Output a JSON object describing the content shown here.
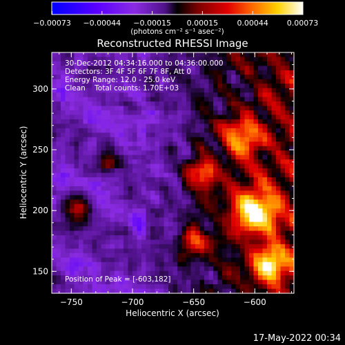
{
  "chart_data": {
    "type": "heatmap",
    "title": "Reconstructed RHESSI Image",
    "annotations": [
      "30-Dec-2012 04:34:16.000 to 04:36:00.000",
      "Detectors: 3F 4F 5F 6F 7F 8F, Att 0",
      "Energy Range: 12.0 - 25.0 keV",
      "Clean    Total counts: 1.70E+03"
    ],
    "peak_label": "Position of Peak = [-603,182]",
    "xlabel": "Heliocentric X (arcsec)",
    "ylabel": "Heliocentric Y (arcsec)",
    "xlim": [
      -766,
      -568
    ],
    "ylim": [
      132,
      330
    ],
    "xticks": [
      -750,
      -700,
      -650,
      -600
    ],
    "yticks": [
      150,
      200,
      250,
      300
    ],
    "colorbar": {
      "ticks": [
        "-0.00073",
        "-0.00044",
        "-0.00015",
        "0.00015",
        "0.00044",
        "0.00073"
      ],
      "units_label": "(photons cm⁻² s⁻¹ asec⁻²)",
      "colormap": [
        "#0000ff",
        "#5a00ff",
        "#8a2be2",
        "#50128a",
        "#000000",
        "#7a0000",
        "#e00000",
        "#ff6a00",
        "#ffd200",
        "#ffffff"
      ]
    },
    "peak": {
      "x": -603,
      "y": 182
    },
    "hot_regions": [
      {
        "x": -600,
        "y": 200,
        "r": 20,
        "level": 1.0
      },
      {
        "x": -588,
        "y": 155,
        "r": 14,
        "level": 0.9
      },
      {
        "x": -610,
        "y": 260,
        "r": 16,
        "level": 0.75
      },
      {
        "x": -642,
        "y": 230,
        "r": 14,
        "level": 0.7
      },
      {
        "x": -650,
        "y": 175,
        "r": 12,
        "level": 0.6
      },
      {
        "x": -745,
        "y": 200,
        "r": 12,
        "level": 0.5
      },
      {
        "x": -720,
        "y": 240,
        "r": 9,
        "level": 0.4
      }
    ]
  },
  "footer": {
    "timestamp": "17-May-2022 00:34"
  }
}
